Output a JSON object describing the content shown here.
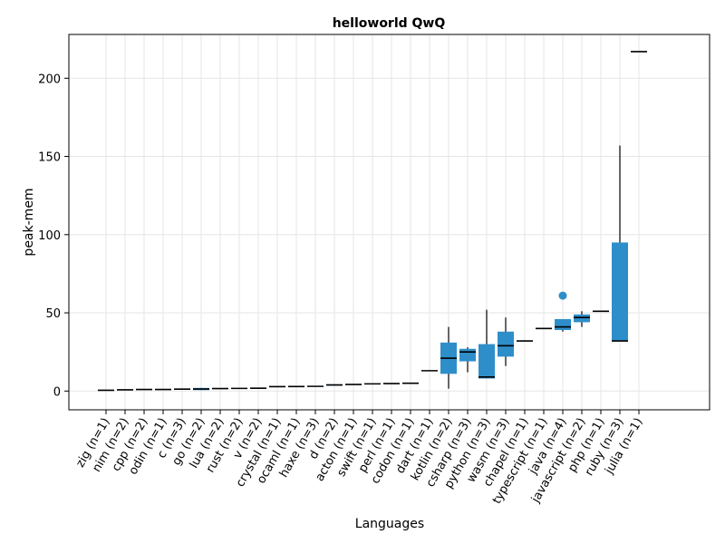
{
  "chart_data": {
    "type": "box",
    "title": "helloworld QwQ",
    "xlabel": "Languages",
    "ylabel": "peak-mem",
    "ylim": [
      -12,
      228
    ],
    "yticks": [
      0,
      50,
      100,
      150,
      200
    ],
    "grid": true,
    "box_color": "#2e8ec9",
    "median_color": "#000000",
    "categories": [
      "zig (n=1)",
      "nim (n=2)",
      "cpp (n=2)",
      "odin (n=1)",
      "c (n=3)",
      "go (n=2)",
      "lua (n=2)",
      "rust (n=2)",
      "v (n=2)",
      "crystal (n=1)",
      "ocaml (n=1)",
      "haxe (n=3)",
      "d (n=2)",
      "acton (n=1)",
      "swift (n=1)",
      "perl (n=1)",
      "codon (n=1)",
      "dart (n=1)",
      "kotlin (n=2)",
      "csharp (n=3)",
      "python (n=3)",
      "wasm (n=3)",
      "chapel (n=1)",
      "typescript (n=1)",
      "java (n=4)",
      "javascript (n=2)",
      "php (n=1)",
      "ruby (n=3)",
      "julia (n=1)"
    ],
    "boxes": [
      {
        "min": 0.5,
        "q1": 0.5,
        "median": 0.5,
        "q3": 0.5,
        "max": 0.5,
        "outliers": []
      },
      {
        "min": 0.8,
        "q1": 0.8,
        "median": 0.8,
        "q3": 0.8,
        "max": 0.8,
        "outliers": []
      },
      {
        "min": 1.0,
        "q1": 1.0,
        "median": 1.0,
        "q3": 1.0,
        "max": 1.0,
        "outliers": []
      },
      {
        "min": 1.0,
        "q1": 1.0,
        "median": 1.0,
        "q3": 1.0,
        "max": 1.0,
        "outliers": []
      },
      {
        "min": 1.2,
        "q1": 1.2,
        "median": 1.2,
        "q3": 1.2,
        "max": 1.2,
        "outliers": []
      },
      {
        "min": 0.6,
        "q1": 0.6,
        "median": 1.3,
        "q3": 2.0,
        "max": 2.0,
        "outliers": []
      },
      {
        "min": 1.6,
        "q1": 1.6,
        "median": 1.6,
        "q3": 1.6,
        "max": 1.6,
        "outliers": []
      },
      {
        "min": 1.7,
        "q1": 1.7,
        "median": 1.7,
        "q3": 1.7,
        "max": 1.7,
        "outliers": []
      },
      {
        "min": 1.8,
        "q1": 1.8,
        "median": 1.8,
        "q3": 1.8,
        "max": 1.8,
        "outliers": []
      },
      {
        "min": 2.8,
        "q1": 2.8,
        "median": 2.8,
        "q3": 2.8,
        "max": 2.8,
        "outliers": []
      },
      {
        "min": 2.9,
        "q1": 2.9,
        "median": 2.9,
        "q3": 2.9,
        "max": 2.9,
        "outliers": []
      },
      {
        "min": 3.0,
        "q1": 3.0,
        "median": 3.0,
        "q3": 3.0,
        "max": 3.0,
        "outliers": []
      },
      {
        "min": 3.4,
        "q1": 3.4,
        "median": 3.9,
        "q3": 4.3,
        "max": 4.3,
        "outliers": []
      },
      {
        "min": 4.2,
        "q1": 4.2,
        "median": 4.2,
        "q3": 4.2,
        "max": 4.2,
        "outliers": []
      },
      {
        "min": 4.6,
        "q1": 4.6,
        "median": 4.6,
        "q3": 4.6,
        "max": 4.6,
        "outliers": []
      },
      {
        "min": 4.8,
        "q1": 4.8,
        "median": 4.8,
        "q3": 4.8,
        "max": 4.8,
        "outliers": []
      },
      {
        "min": 5.0,
        "q1": 5.0,
        "median": 5.0,
        "q3": 5.0,
        "max": 5.0,
        "outliers": []
      },
      {
        "min": 13.0,
        "q1": 13.0,
        "median": 13.0,
        "q3": 13.0,
        "max": 13.0,
        "outliers": []
      },
      {
        "min": 1.5,
        "q1": 11.0,
        "median": 21.0,
        "q3": 31.0,
        "max": 41.0,
        "outliers": []
      },
      {
        "min": 12.0,
        "q1": 19.0,
        "median": 25.0,
        "q3": 27.0,
        "max": 28.0,
        "outliers": []
      },
      {
        "min": 8.0,
        "q1": 8.0,
        "median": 9.0,
        "q3": 30.0,
        "max": 52.0,
        "outliers": []
      },
      {
        "min": 16.0,
        "q1": 22.0,
        "median": 29.0,
        "q3": 38.0,
        "max": 47.0,
        "outliers": []
      },
      {
        "min": 32.0,
        "q1": 32.0,
        "median": 32.0,
        "q3": 32.0,
        "max": 32.0,
        "outliers": []
      },
      {
        "min": 40.0,
        "q1": 40.0,
        "median": 40.0,
        "q3": 40.0,
        "max": 40.0,
        "outliers": []
      },
      {
        "min": 38.0,
        "q1": 39.0,
        "median": 41.0,
        "q3": 46.0,
        "max": 46.0,
        "outliers": [
          61.0
        ]
      },
      {
        "min": 41.0,
        "q1": 44.0,
        "median": 47.0,
        "q3": 49.0,
        "max": 51.0,
        "outliers": []
      },
      {
        "min": 51.0,
        "q1": 51.0,
        "median": 51.0,
        "q3": 51.0,
        "max": 51.0,
        "outliers": []
      },
      {
        "min": 32.0,
        "q1": 32.0,
        "median": 32.0,
        "q3": 95.0,
        "max": 157.0,
        "outliers": []
      },
      {
        "min": 217.0,
        "q1": 217.0,
        "median": 217.0,
        "q3": 217.0,
        "max": 217.0,
        "outliers": []
      }
    ]
  }
}
